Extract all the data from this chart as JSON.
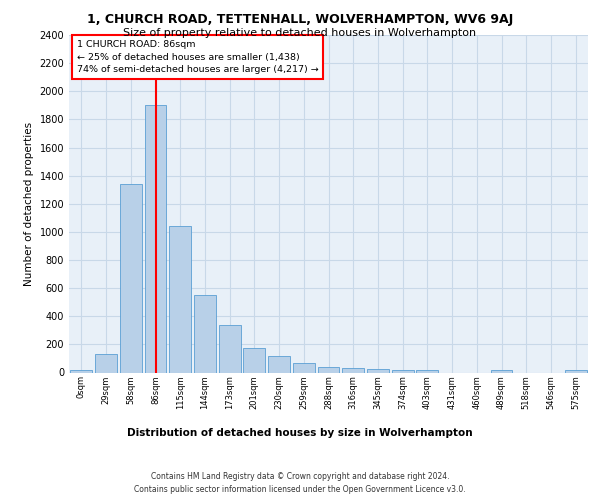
{
  "title1": "1, CHURCH ROAD, TETTENHALL, WOLVERHAMPTON, WV6 9AJ",
  "title2": "Size of property relative to detached houses in Wolverhampton",
  "xlabel": "Distribution of detached houses by size in Wolverhampton",
  "ylabel": "Number of detached properties",
  "footer1": "Contains HM Land Registry data © Crown copyright and database right 2024.",
  "footer2": "Contains public sector information licensed under the Open Government Licence v3.0.",
  "annotation_line1": "1 CHURCH ROAD: 86sqm",
  "annotation_line2": "← 25% of detached houses are smaller (1,438)",
  "annotation_line3": "74% of semi-detached houses are larger (4,217) →",
  "bar_color": "#b8d0e8",
  "bar_edge_color": "#5a9fd4",
  "vline_color": "red",
  "grid_color": "#c8d8e8",
  "bg_color": "#e8f0f8",
  "categories": [
    "0sqm",
    "29sqm",
    "58sqm",
    "86sqm",
    "115sqm",
    "144sqm",
    "173sqm",
    "201sqm",
    "230sqm",
    "259sqm",
    "288sqm",
    "316sqm",
    "345sqm",
    "374sqm",
    "403sqm",
    "431sqm",
    "460sqm",
    "489sqm",
    "518sqm",
    "546sqm",
    "575sqm"
  ],
  "values": [
    15,
    130,
    1340,
    1900,
    1045,
    550,
    335,
    175,
    115,
    65,
    40,
    30,
    25,
    20,
    15,
    0,
    0,
    20,
    0,
    0,
    15
  ],
  "ylim": [
    0,
    2400
  ],
  "yticks": [
    0,
    200,
    400,
    600,
    800,
    1000,
    1200,
    1400,
    1600,
    1800,
    2000,
    2200,
    2400
  ]
}
